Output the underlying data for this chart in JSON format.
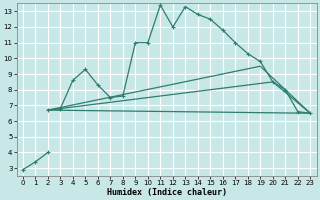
{
  "xlabel": "Humidex (Indice chaleur)",
  "bg_color": "#c8e8e8",
  "grid_color": "#ffffff",
  "line_color": "#2e7d6e",
  "xlim": [
    -0.5,
    23.5
  ],
  "ylim": [
    2.5,
    13.5
  ],
  "xticks": [
    0,
    1,
    2,
    3,
    4,
    5,
    6,
    7,
    8,
    9,
    10,
    11,
    12,
    13,
    14,
    15,
    16,
    17,
    18,
    19,
    20,
    21,
    22,
    23
  ],
  "yticks": [
    3,
    4,
    5,
    6,
    7,
    8,
    9,
    10,
    11,
    12,
    13
  ],
  "lines": [
    {
      "x": [
        0,
        1,
        2
      ],
      "y": [
        2.9,
        3.4,
        4.0
      ],
      "marker": "+",
      "ms": 3
    },
    {
      "x": [
        2,
        3,
        4,
        5,
        6,
        7,
        8,
        9,
        10,
        11,
        12,
        13,
        14,
        15,
        16,
        17,
        18,
        19,
        20,
        21,
        22,
        23
      ],
      "y": [
        6.7,
        6.8,
        8.6,
        9.3,
        8.3,
        7.5,
        7.6,
        11.0,
        11.0,
        13.4,
        12.0,
        13.3,
        12.8,
        12.5,
        11.8,
        11.0,
        10.3,
        9.8,
        8.5,
        8.0,
        6.6,
        6.5
      ],
      "marker": "+",
      "ms": 3
    },
    {
      "x": [
        2,
        23
      ],
      "y": [
        6.7,
        6.5
      ],
      "marker": null,
      "ms": 0
    },
    {
      "x": [
        2,
        19,
        23
      ],
      "y": [
        6.7,
        9.5,
        6.5
      ],
      "marker": null,
      "ms": 0
    },
    {
      "x": [
        2,
        20,
        23
      ],
      "y": [
        6.7,
        8.5,
        6.5
      ],
      "marker": null,
      "ms": 0
    }
  ]
}
